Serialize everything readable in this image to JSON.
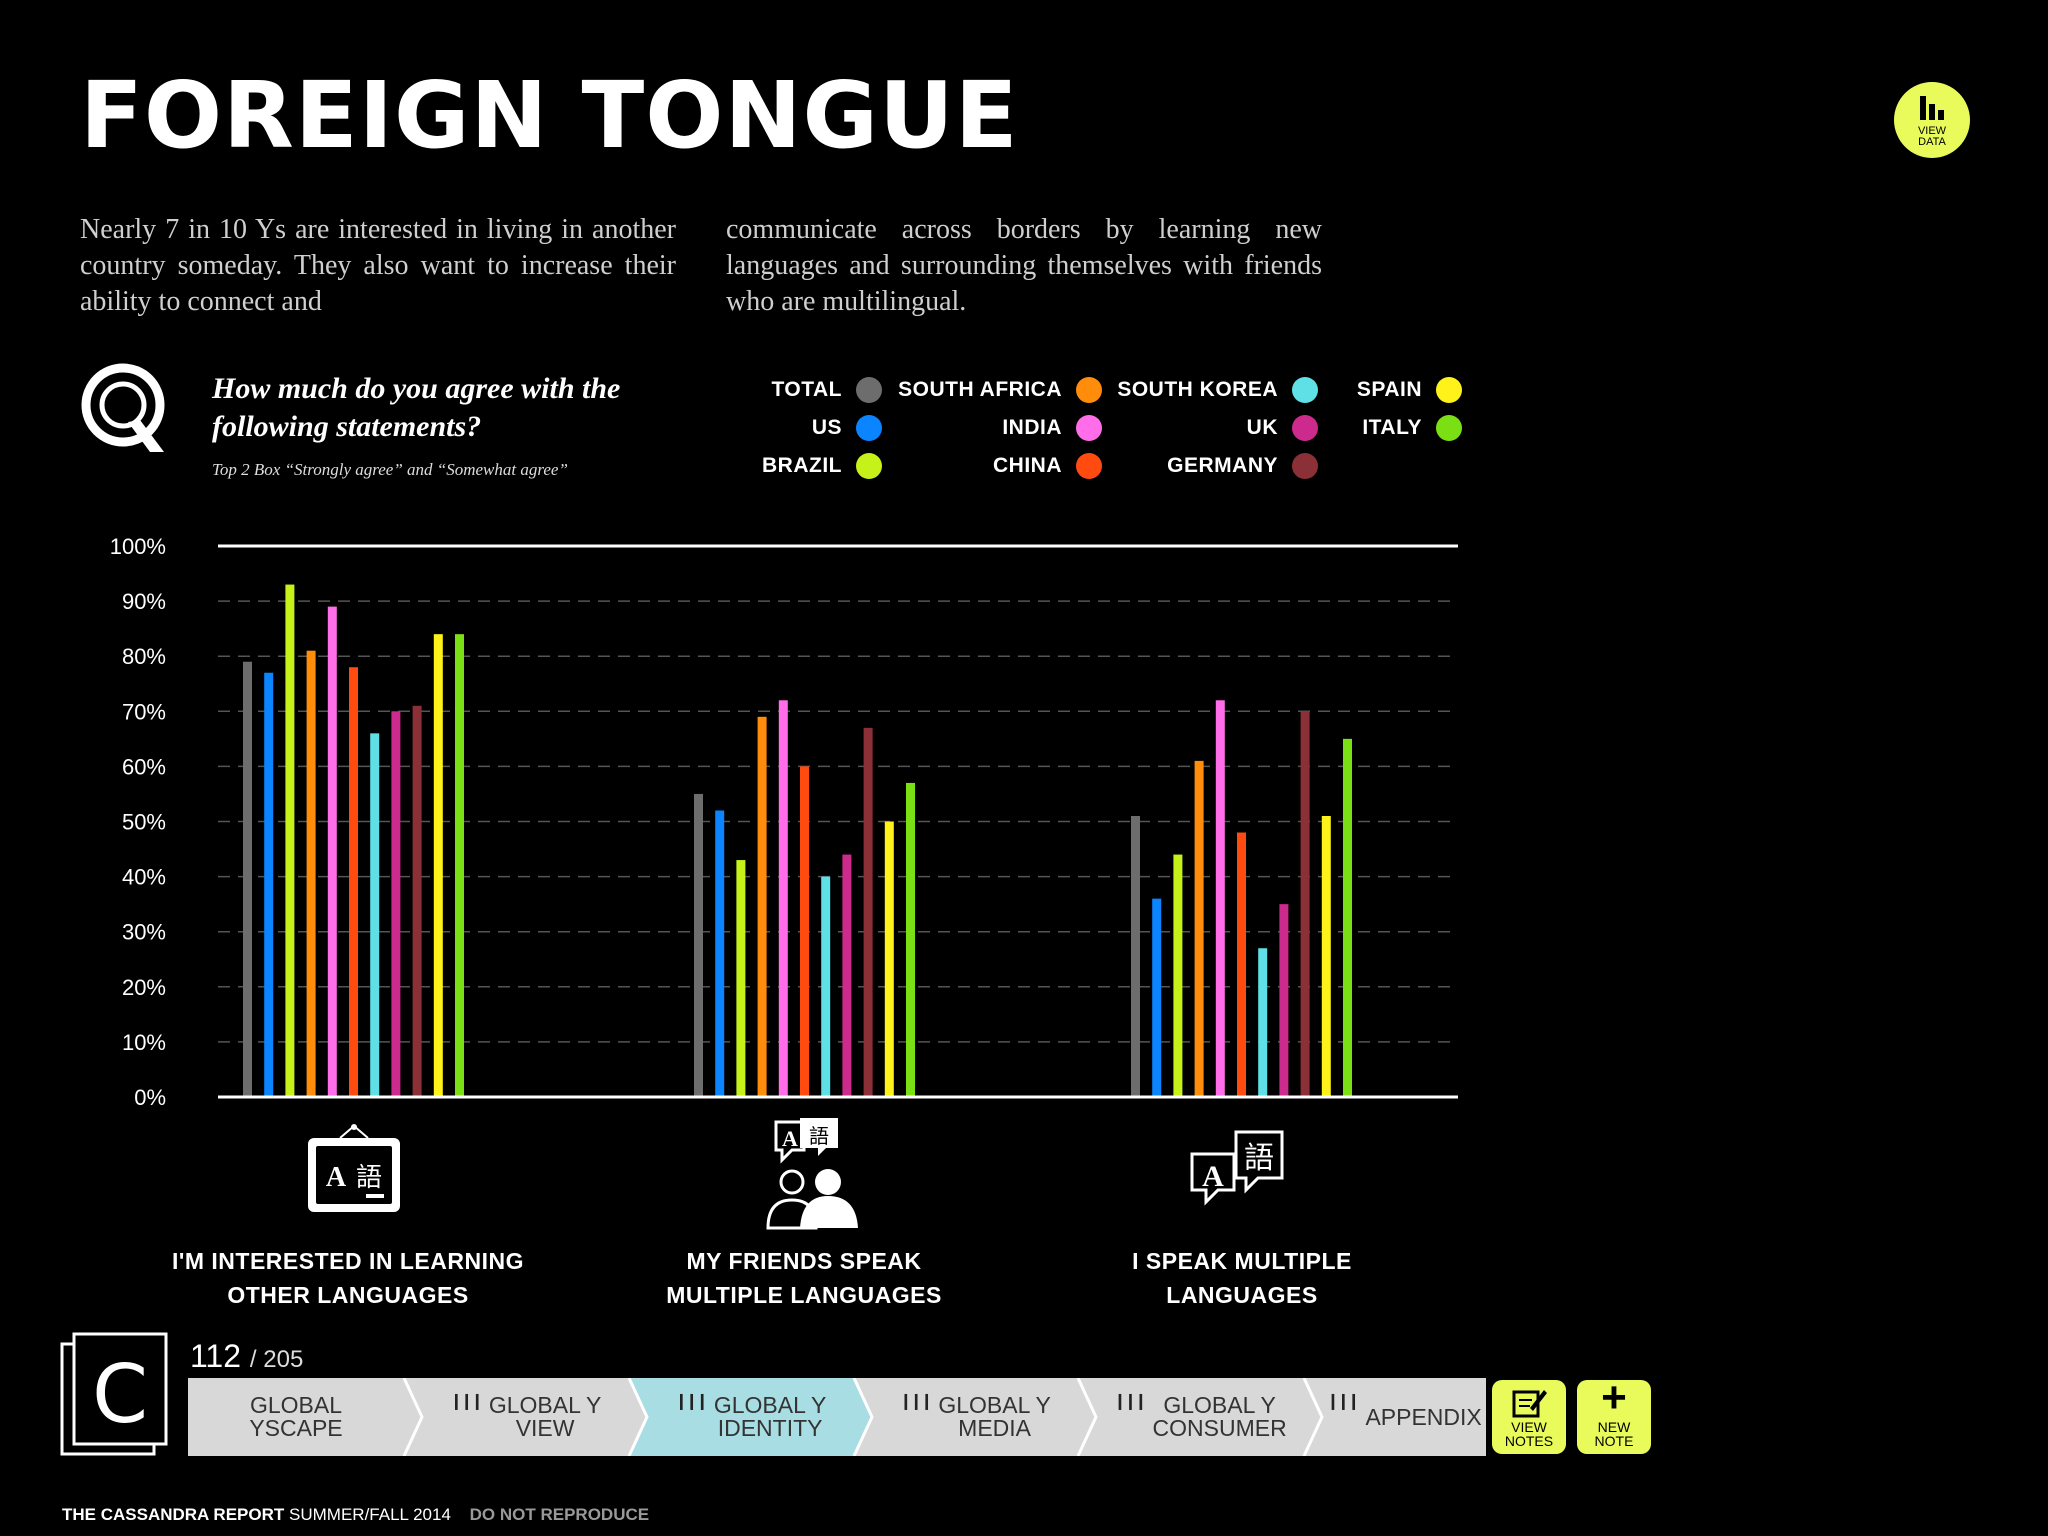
{
  "page": {
    "title": "FOREIGN TONGUE",
    "intro_left": "Nearly 7 in 10 Ys are interested in living in another country someday. They also want to increase their ability to connect and",
    "intro_right": "communicate across borders by learning new languages and surrounding themselves with friends who are multilingual.",
    "question": "How much do you agree with the following statements?",
    "question_note": "Top 2 Box “Strongly agree” and “Somewhat agree”",
    "view_data_label_1": "VIEW",
    "view_data_label_2": "DATA",
    "q_glyph": "Q"
  },
  "legend": [
    {
      "name": "TOTAL",
      "color": "#6d6d6d"
    },
    {
      "name": "US",
      "color": "#0a84ff"
    },
    {
      "name": "BRAZIL",
      "color": "#c6f21a"
    },
    {
      "name": "SOUTH AFRICA",
      "color": "#ff8c0a"
    },
    {
      "name": "INDIA",
      "color": "#ff6ee8"
    },
    {
      "name": "CHINA",
      "color": "#ff4a10"
    },
    {
      "name": "SOUTH KOREA",
      "color": "#5ee0e6"
    },
    {
      "name": "UK",
      "color": "#cc2a8c"
    },
    {
      "name": "GERMANY",
      "color": "#8c3038"
    },
    {
      "name": "SPAIN",
      "color": "#fff21a"
    },
    {
      "name": "ITALY",
      "color": "#7ae014"
    }
  ],
  "chart_data": {
    "type": "bar",
    "title": "How much do you agree with the following statements?",
    "xlabel": "",
    "ylabel": "",
    "ylim": [
      0,
      100
    ],
    "yticks": [
      "0%",
      "10%",
      "20%",
      "30%",
      "40%",
      "50%",
      "60%",
      "70%",
      "80%",
      "90%",
      "100%"
    ],
    "categories": [
      "I'M INTERESTED IN LEARNING OTHER LANGUAGES",
      "MY FRIENDS SPEAK MULTIPLE LANGUAGES",
      "I SPEAK MULTIPLE LANGUAGES"
    ],
    "series": [
      {
        "name": "TOTAL",
        "values": [
          79,
          55,
          51
        ]
      },
      {
        "name": "US",
        "values": [
          77,
          52,
          36
        ]
      },
      {
        "name": "BRAZIL",
        "values": [
          93,
          43,
          44
        ]
      },
      {
        "name": "SOUTH AFRICA",
        "values": [
          81,
          69,
          61
        ]
      },
      {
        "name": "INDIA",
        "values": [
          89,
          72,
          72
        ]
      },
      {
        "name": "CHINA",
        "values": [
          78,
          60,
          48
        ]
      },
      {
        "name": "SOUTH KOREA",
        "values": [
          66,
          40,
          27
        ]
      },
      {
        "name": "UK",
        "values": [
          70,
          44,
          35
        ]
      },
      {
        "name": "GERMANY",
        "values": [
          71,
          67,
          70
        ]
      },
      {
        "name": "SPAIN",
        "values": [
          84,
          50,
          51
        ]
      },
      {
        "name": "ITALY",
        "values": [
          84,
          57,
          65
        ]
      }
    ]
  },
  "categories_display": [
    {
      "line1": "I'M INTERESTED IN LEARNING",
      "line2": "OTHER LANGUAGES"
    },
    {
      "line1": "MY FRIENDS SPEAK",
      "line2": "MULTIPLE LANGUAGES"
    },
    {
      "line1": "I SPEAK MULTIPLE",
      "line2": "LANGUAGES"
    }
  ],
  "icons": {
    "latin": "A",
    "cjk": "語"
  },
  "pager": {
    "current": "112",
    "total": "/ 205",
    "logo": "C"
  },
  "nav": [
    {
      "line1": "GLOBAL",
      "line2": "YSCAPE",
      "icon": ""
    },
    {
      "line1": "GLOBAL Y",
      "line2": "VIEW",
      "icon": "❙❙❙"
    },
    {
      "line1": "GLOBAL Y",
      "line2": "IDENTITY",
      "icon": "❙❙❙"
    },
    {
      "line1": "GLOBAL Y",
      "line2": "MEDIA",
      "icon": "❙❙❙"
    },
    {
      "line1": "GLOBAL Y",
      "line2": "CONSUMER",
      "icon": "❙❙❙"
    },
    {
      "line1": "APPENDIX",
      "line2": "",
      "icon": "❙❙❙"
    }
  ],
  "tools": {
    "view_notes_1": "VIEW",
    "view_notes_2": "NOTES",
    "new_note_1": "NEW",
    "new_note_2": "NOTE",
    "plus": "+"
  },
  "footer": {
    "brand": "THE CASSANDRA REPORT",
    "edition": "SUMMER/FALL 2014",
    "warning": "DO NOT REPRODUCE"
  }
}
